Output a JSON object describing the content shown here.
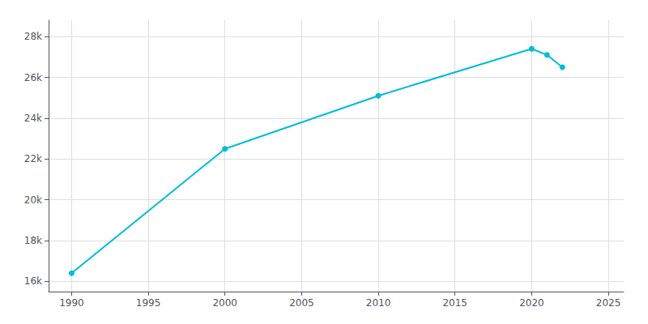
{
  "chart_data": {
    "type": "line",
    "x": [
      1990,
      2000,
      2010,
      2020,
      2021,
      2022
    ],
    "values": [
      16400,
      22500,
      25100,
      27400,
      27100,
      26500
    ],
    "color": "#00bcd4",
    "marker": "circle",
    "xlim": [
      1988.5,
      2026
    ],
    "ylim": [
      15500,
      28800
    ],
    "xticks": [
      1990,
      1995,
      2000,
      2005,
      2010,
      2015,
      2020,
      2025
    ],
    "yticks": [
      {
        "value": 16000,
        "label": "16k"
      },
      {
        "value": 18000,
        "label": "18k"
      },
      {
        "value": 20000,
        "label": "20k"
      },
      {
        "value": 22000,
        "label": "22k"
      },
      {
        "value": 24000,
        "label": "24k"
      },
      {
        "value": 26000,
        "label": "26k"
      },
      {
        "value": 28000,
        "label": "28k"
      }
    ],
    "grid": true
  }
}
